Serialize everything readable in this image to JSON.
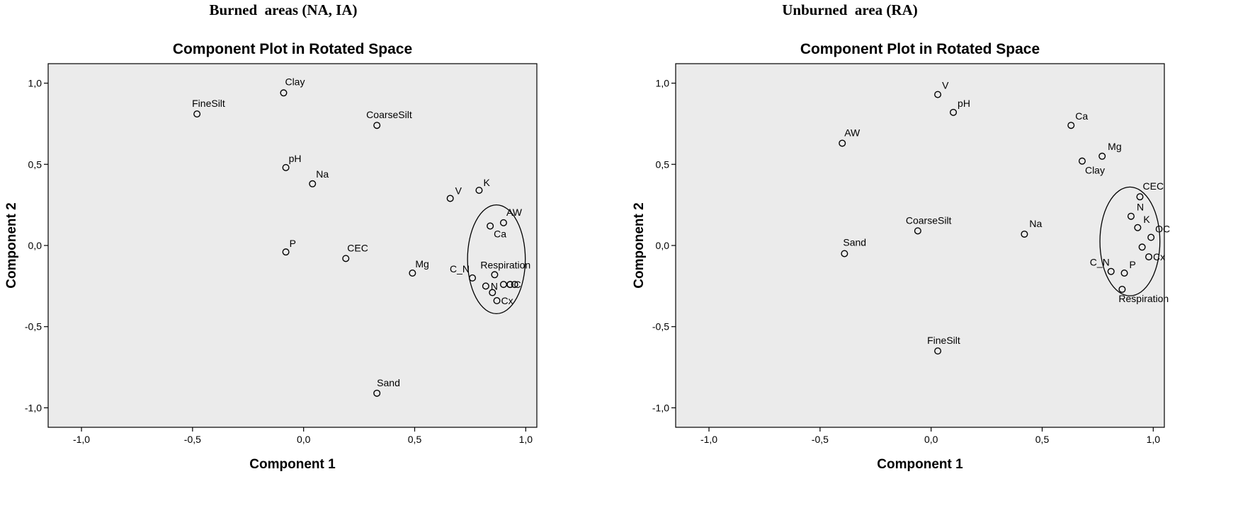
{
  "headings": {
    "left": "Burned  areas (NA, IA)",
    "right": "Unburned  area (RA)"
  },
  "chart_data": [
    {
      "type": "scatter",
      "heading": "Burned  areas (NA, IA)",
      "title": "Component Plot in Rotated Space",
      "xlabel": "Component 1",
      "ylabel": "Component 2",
      "xlim": [
        -1.15,
        1.05
      ],
      "ylim": [
        -1.12,
        1.12
      ],
      "x_ticks": [
        -1.0,
        -0.5,
        0.0,
        0.5,
        1.0
      ],
      "y_ticks": [
        -1.0,
        -0.5,
        0.0,
        0.5,
        1.0
      ],
      "x_tick_labels": [
        "-1,0",
        "-0,5",
        "0,0",
        "0,5",
        "1,0"
      ],
      "y_tick_labels": [
        "-1,0",
        "-0,5",
        "0,0",
        "0,5",
        "1,0"
      ],
      "grid": false,
      "points": [
        {
          "label": "Clay",
          "x": -0.09,
          "y": 0.94
        },
        {
          "label": "FineSilt",
          "x": -0.48,
          "y": 0.81
        },
        {
          "label": "CoarseSilt",
          "x": 0.33,
          "y": 0.74
        },
        {
          "label": "pH",
          "x": -0.08,
          "y": 0.48
        },
        {
          "label": "Na",
          "x": 0.04,
          "y": 0.38
        },
        {
          "label": "V",
          "x": 0.66,
          "y": 0.29
        },
        {
          "label": "K",
          "x": 0.79,
          "y": 0.34
        },
        {
          "label": "AW",
          "x": 0.9,
          "y": 0.14
        },
        {
          "label": "Ca",
          "x": 0.84,
          "y": 0.12
        },
        {
          "label": "P",
          "x": -0.08,
          "y": -0.04
        },
        {
          "label": "CEC",
          "x": 0.19,
          "y": -0.08
        },
        {
          "label": "Mg",
          "x": 0.49,
          "y": -0.17
        },
        {
          "label": "Respiration",
          "x": 0.86,
          "y": -0.18
        },
        {
          "label": "C_N",
          "x": 0.76,
          "y": -0.2
        },
        {
          "label": "N",
          "x": 0.82,
          "y": -0.25
        },
        {
          "label": "",
          "x": 0.85,
          "y": -0.29
        },
        {
          "label": "",
          "x": 0.9,
          "y": -0.24
        },
        {
          "label": "",
          "x": 0.93,
          "y": -0.24
        },
        {
          "label": "OC",
          "x": 0.95,
          "y": -0.24
        },
        {
          "label": "Cx",
          "x": 0.87,
          "y": -0.34
        },
        {
          "label": "Sand",
          "x": 0.33,
          "y": -0.91
        }
      ],
      "ellipse": {
        "cx": 0.868,
        "cy": -0.085,
        "rx": 0.13,
        "ry": 0.335
      }
    },
    {
      "type": "scatter",
      "heading": "Unburned  area (RA)",
      "title": "Component Plot in Rotated Space",
      "xlabel": "Component 1",
      "ylabel": "Component 2",
      "xlim": [
        -1.15,
        1.05
      ],
      "ylim": [
        -1.12,
        1.12
      ],
      "x_ticks": [
        -1.0,
        -0.5,
        0.0,
        0.5,
        1.0
      ],
      "y_ticks": [
        -1.0,
        -0.5,
        0.0,
        0.5,
        1.0
      ],
      "x_tick_labels": [
        "-1,0",
        "-0,5",
        "0,0",
        "0,5",
        "1,0"
      ],
      "y_tick_labels": [
        "-1,0",
        "-0,5",
        "0,0",
        "0,5",
        "1,0"
      ],
      "grid": false,
      "points": [
        {
          "label": "V",
          "x": 0.03,
          "y": 0.93
        },
        {
          "label": "pH",
          "x": 0.1,
          "y": 0.82
        },
        {
          "label": "Ca",
          "x": 0.63,
          "y": 0.74
        },
        {
          "label": "AW",
          "x": -0.4,
          "y": 0.63
        },
        {
          "label": "Mg",
          "x": 0.77,
          "y": 0.55
        },
        {
          "label": "Clay",
          "x": 0.68,
          "y": 0.52
        },
        {
          "label": "CEC",
          "x": 0.94,
          "y": 0.3
        },
        {
          "label": "N",
          "x": 0.9,
          "y": 0.18
        },
        {
          "label": "K",
          "x": 0.93,
          "y": 0.11
        },
        {
          "label": "OC",
          "x": 0.99,
          "y": 0.05
        },
        {
          "label": "",
          "x": 0.95,
          "y": -0.01
        },
        {
          "label": "CoarseSilt",
          "x": -0.06,
          "y": 0.09
        },
        {
          "label": "Na",
          "x": 0.42,
          "y": 0.07
        },
        {
          "label": "Sand",
          "x": -0.39,
          "y": -0.05
        },
        {
          "label": "Cx",
          "x": 0.98,
          "y": -0.07
        },
        {
          "label": "C_N",
          "x": 0.81,
          "y": -0.16
        },
        {
          "label": "P",
          "x": 0.87,
          "y": -0.17
        },
        {
          "label": "Respiration",
          "x": 0.86,
          "y": -0.27
        },
        {
          "label": "FineSilt",
          "x": 0.03,
          "y": -0.65
        }
      ],
      "ellipse": {
        "cx": 0.895,
        "cy": 0.025,
        "rx": 0.135,
        "ry": 0.335
      }
    }
  ]
}
